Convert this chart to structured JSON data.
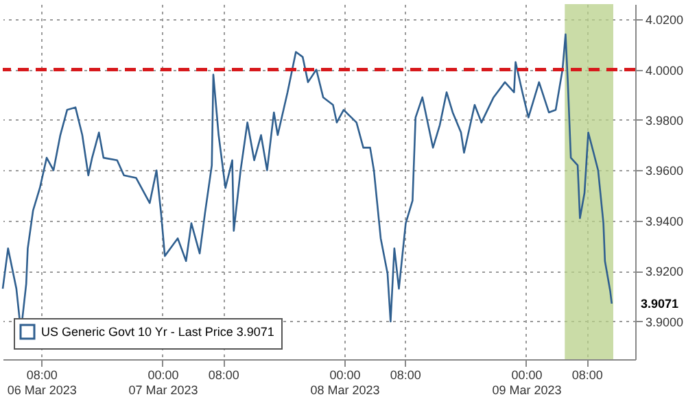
{
  "chart_data": {
    "type": "line",
    "x": [
      "2023-03-06T02:54",
      "2023-03-06T03:36",
      "2023-03-06T04:42",
      "2023-03-06T05:18",
      "2023-03-06T06:00",
      "2023-03-06T06:12",
      "2023-03-06T06:54",
      "2023-03-06T07:48",
      "2023-03-06T08:42",
      "2023-03-06T09:36",
      "2023-03-06T10:30",
      "2023-03-06T11:24",
      "2023-03-06T12:30",
      "2023-03-06T13:24",
      "2023-03-06T14:12",
      "2023-03-06T14:42",
      "2023-03-06T15:36",
      "2023-03-06T16:12",
      "2023-03-06T18:00",
      "2023-03-06T18:54",
      "2023-03-06T20:30",
      "2023-03-06T22:18",
      "2023-03-06T23:12",
      "2023-03-06T23:48",
      "2023-03-07T00:18",
      "2023-03-07T02:00",
      "2023-03-07T03:06",
      "2023-03-07T03:48",
      "2023-03-07T04:54",
      "2023-03-07T05:36",
      "2023-03-07T06:30",
      "2023-03-07T06:42",
      "2023-03-07T07:24",
      "2023-03-07T08:18",
      "2023-03-07T09:12",
      "2023-03-07T09:24",
      "2023-03-07T10:18",
      "2023-03-07T11:12",
      "2023-03-07T12:06",
      "2023-03-07T13:00",
      "2023-03-07T13:48",
      "2023-03-07T14:42",
      "2023-03-07T15:12",
      "2023-03-07T16:30",
      "2023-03-07T17:36",
      "2023-03-07T18:30",
      "2023-03-07T19:12",
      "2023-03-07T20:18",
      "2023-03-07T21:12",
      "2023-03-07T22:30",
      "2023-03-07T23:00",
      "2023-03-07T23:54",
      "2023-03-08T01:36",
      "2023-03-08T02:30",
      "2023-03-08T03:24",
      "2023-03-08T03:54",
      "2023-03-08T04:48",
      "2023-03-08T05:42",
      "2023-03-08T06:06",
      "2023-03-08T06:36",
      "2023-03-08T07:12",
      "2023-03-08T08:06",
      "2023-03-08T09:00",
      "2023-03-08T09:24",
      "2023-03-08T10:18",
      "2023-03-08T11:42",
      "2023-03-08T12:36",
      "2023-03-08T13:30",
      "2023-03-08T14:18",
      "2023-03-08T15:24",
      "2023-03-08T15:48",
      "2023-03-08T17:12",
      "2023-03-08T18:06",
      "2023-03-08T19:42",
      "2023-03-08T21:12",
      "2023-03-08T22:24",
      "2023-03-08T22:36",
      "2023-03-08T23:30",
      "2023-03-09T00:18",
      "2023-03-09T01:42",
      "2023-03-09T03:00",
      "2023-03-09T03:54",
      "2023-03-09T04:48",
      "2023-03-09T05:12",
      "2023-03-09T05:30",
      "2023-03-09T05:54",
      "2023-03-09T06:48",
      "2023-03-09T07:06",
      "2023-03-09T07:42",
      "2023-03-09T08:12",
      "2023-03-09T08:54",
      "2023-03-09T09:30",
      "2023-03-09T10:12",
      "2023-03-09T10:24",
      "2023-03-09T11:06",
      "2023-03-09T11:18"
    ],
    "series": [
      {
        "name": "US Generic Govt 10 Yr - Last Price 3.9071",
        "color": "#2f5f8f",
        "values": [
          3.913,
          3.929,
          3.913,
          3.896,
          3.915,
          3.929,
          3.944,
          3.953,
          3.965,
          3.96,
          3.974,
          3.984,
          3.985,
          3.974,
          3.958,
          3.965,
          3.975,
          3.965,
          3.964,
          3.958,
          3.957,
          3.947,
          3.96,
          3.943,
          3.926,
          3.933,
          3.924,
          3.939,
          3.927,
          3.943,
          3.962,
          3.998,
          3.974,
          3.953,
          3.964,
          3.936,
          3.96,
          3.979,
          3.964,
          3.974,
          3.96,
          3.983,
          3.974,
          3.991,
          4.007,
          4.005,
          3.995,
          4.0,
          3.989,
          3.986,
          3.979,
          3.984,
          3.979,
          3.969,
          3.969,
          3.96,
          3.933,
          3.919,
          3.9,
          3.929,
          3.913,
          3.939,
          3.948,
          3.981,
          3.989,
          3.969,
          3.978,
          3.991,
          3.983,
          3.975,
          3.967,
          3.986,
          3.979,
          3.989,
          3.995,
          3.991,
          4.003,
          3.991,
          3.981,
          3.995,
          3.983,
          3.984,
          4.0,
          4.014,
          3.995,
          3.965,
          3.962,
          3.941,
          3.951,
          3.975,
          3.967,
          3.96,
          3.939,
          3.924,
          3.912,
          3.9071
        ]
      }
    ],
    "xlim": [
      "2023-03-06T02:54",
      "2023-03-09T14:24"
    ],
    "xticks": [
      {
        "value": "2023-03-06T08:00",
        "label": "08:00\n06 Mar 2023"
      },
      {
        "value": "2023-03-07T00:00",
        "label": "00:00\n07 Mar 2023"
      },
      {
        "value": "2023-03-07T08:00",
        "label": "08:00"
      },
      {
        "value": "2023-03-08T00:00",
        "label": "00:00\n08 Mar 2023"
      },
      {
        "value": "2023-03-08T08:00",
        "label": "08:00"
      },
      {
        "value": "2023-03-09T00:00",
        "label": "00:00\n09 Mar 2023"
      },
      {
        "value": "2023-03-09T08:00",
        "label": "08:00"
      }
    ],
    "ylim": [
      3.885,
      4.026
    ],
    "yticks": [
      {
        "value": 3.9,
        "label": "3.9000"
      },
      {
        "value": 3.92,
        "label": "3.9200"
      },
      {
        "value": 3.94,
        "label": "3.9400"
      },
      {
        "value": 3.96,
        "label": "3.9600"
      },
      {
        "value": 3.98,
        "label": "3.9800"
      },
      {
        "value": 4.0,
        "label": "4.0000"
      },
      {
        "value": 4.02,
        "label": "4.0200"
      }
    ],
    "grid": true,
    "legend": "bottom left",
    "ref_lines": [
      {
        "axis": "y",
        "value": 4.0,
        "color": "#d7191c",
        "line_style": "dashed"
      }
    ],
    "bands": [
      {
        "axis": "x",
        "from": "2023-03-09T05:06",
        "to": "2023-03-09T11:30",
        "color": "#b8d08a"
      }
    ],
    "annotations": [
      "3.9071"
    ]
  }
}
